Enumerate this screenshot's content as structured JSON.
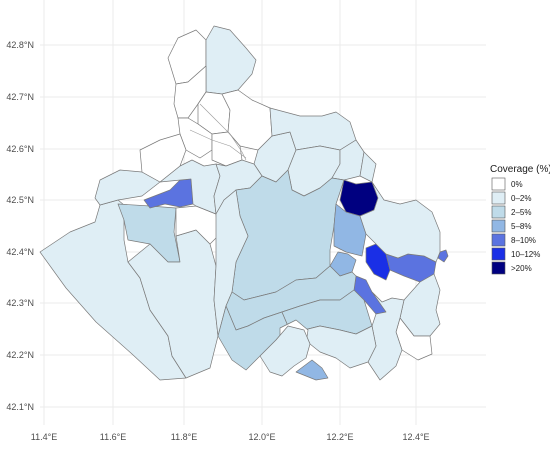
{
  "map": {
    "legend": {
      "title": "Coverage (%)",
      "classes": [
        {
          "label": "0%",
          "color": "#ffffff"
        },
        {
          "label": "0–2%",
          "color": "#dfeef5"
        },
        {
          "label": "2–5%",
          "color": "#bfdbe9"
        },
        {
          "label": "5–8%",
          "color": "#91b7e4"
        },
        {
          "label": "8–10%",
          "color": "#5b73e0"
        },
        {
          "label": "10–12%",
          "color": "#1a2fe6"
        },
        {
          "label": ">20%",
          "color": "#000080"
        }
      ]
    },
    "lon_ticks": [
      "11.4°E",
      "11.6°E",
      "11.8°E",
      "12.0°E",
      "12.2°E",
      "12.4°E"
    ],
    "lat_ticks": [
      "42.8°N",
      "42.7°N",
      "42.6°N",
      "42.5°N",
      "42.4°N",
      "42.3°N",
      "42.2°N",
      "42.1°N"
    ],
    "extent": {
      "lon": [
        11.4,
        12.55
      ],
      "lat": [
        42.08,
        42.86
      ]
    },
    "grid": true
  }
}
